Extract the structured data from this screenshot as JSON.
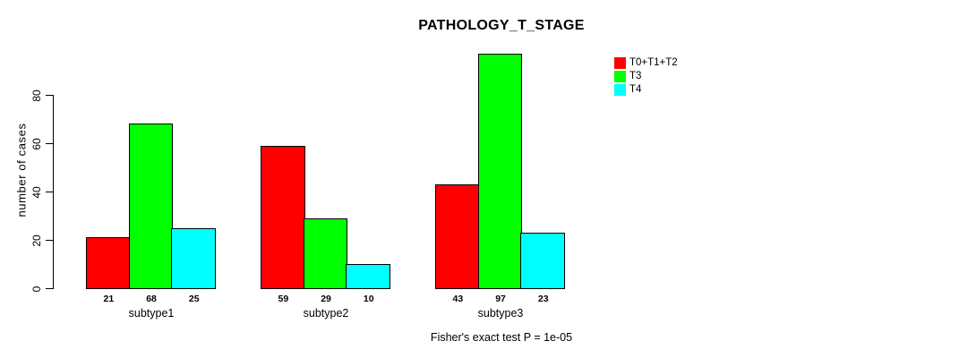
{
  "chart_data": {
    "type": "bar",
    "title": "PATHOLOGY_T_STAGE",
    "ylabel": "number of cases",
    "xlabel": "",
    "categories": [
      "subtype1",
      "subtype2",
      "subtype3"
    ],
    "series": [
      {
        "name": "T0+T1+T2",
        "color": "#ff0000",
        "values": [
          21,
          59,
          43
        ]
      },
      {
        "name": "T3",
        "color": "#00ff00",
        "values": [
          68,
          29,
          97
        ]
      },
      {
        "name": "T4",
        "color": "#00ffff",
        "values": [
          25,
          10,
          23
        ]
      }
    ],
    "yticks": [
      0,
      20,
      40,
      60,
      80
    ],
    "ylim": [
      0,
      80
    ],
    "grid": false,
    "legend_position": "right",
    "bar_border_color": "#000000",
    "background_color": "#ffffff",
    "value_labels_shown": true,
    "footer": "Fisher's exact test P = 1e-05"
  }
}
